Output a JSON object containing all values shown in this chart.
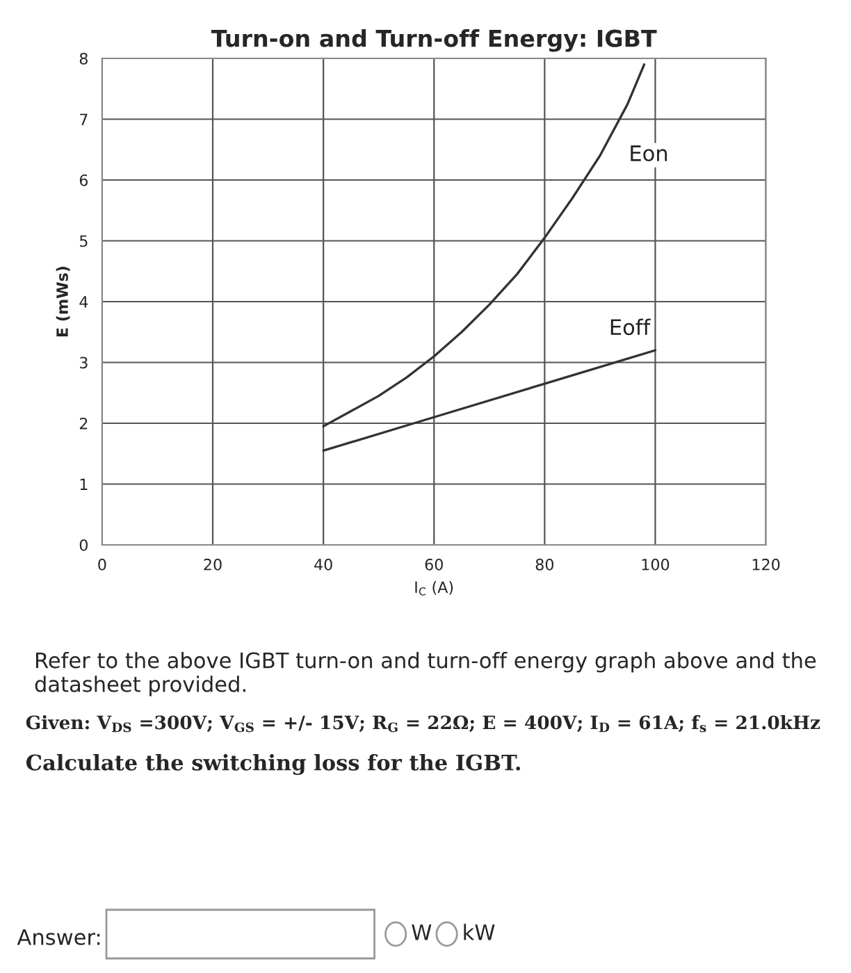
{
  "chart_data": {
    "type": "line",
    "title": "Turn-on and Turn-off Energy: IGBT",
    "xlabel": "I$_{C}$ (A)",
    "ylabel": "E (mWs)",
    "xlim": [
      0,
      120
    ],
    "xticks": [
      0,
      20,
      40,
      60,
      80,
      100,
      120
    ],
    "ylim": [
      0,
      8
    ],
    "yticks": [
      0,
      1,
      2,
      3,
      4,
      5,
      6,
      7,
      8
    ],
    "grid": true,
    "marker": "none",
    "line_style": "solid",
    "series": [
      {
        "name": "Eon",
        "color": "#333333",
        "x": [
          40,
          45,
          50,
          55,
          60,
          65,
          70,
          75,
          80,
          85,
          90,
          95,
          98
        ],
        "values": [
          1.95,
          2.2,
          2.45,
          2.75,
          3.1,
          3.5,
          3.95,
          4.45,
          5.05,
          5.7,
          6.4,
          7.25,
          7.9
        ]
      },
      {
        "name": "Eoff",
        "color": "#333333",
        "x": [
          40,
          60,
          80,
          100
        ],
        "values": [
          1.55,
          2.1,
          2.65,
          3.2
        ]
      }
    ],
    "annotations": [
      "Refer to the above IGBT turn-on and turn-off energy graph above and the datasheet provided.",
      "Given: V$_{DS}$ =300V; V$_{GS}$ = +/- 15V; R$_{G}$ = 22Ω; E = 400V; I$_{D}$ = 61A; f$_{s}$ = 21.0kHz",
      "Calculate the switching loss for the IGBT.",
      "Answer:",
      "W",
      "kW"
    ]
  }
}
